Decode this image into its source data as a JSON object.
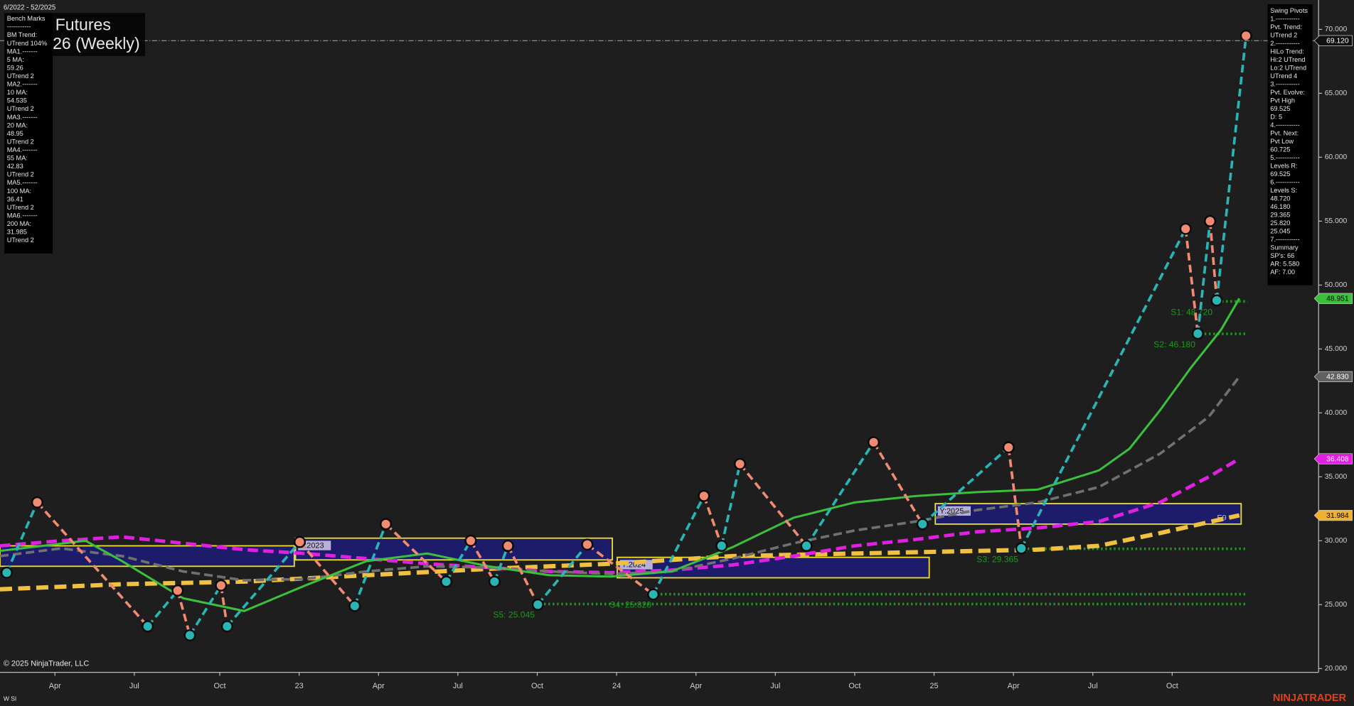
{
  "chart_data": {
    "type": "line",
    "date_range": "6/2022 - 52/2025",
    "title": "Futures",
    "subtitle": "26 (Weekly)",
    "copyright": "© 2025 NinjaTrader, LLC",
    "corner_note": "W SI",
    "brand": "NINJATRADER",
    "background": "#1e1e1e",
    "grid": false,
    "xlim": [
      0,
      215.7
    ],
    "ylim": [
      19.7,
      72.3
    ],
    "xticks": [
      {
        "value": 9,
        "label": "Apr"
      },
      {
        "value": 22,
        "label": "Jul"
      },
      {
        "value": 36,
        "label": "Oct"
      },
      {
        "value": 49,
        "label": "23"
      },
      {
        "value": 62,
        "label": "Apr"
      },
      {
        "value": 75,
        "label": "Jul"
      },
      {
        "value": 88,
        "label": "Oct"
      },
      {
        "value": 101,
        "label": "24"
      },
      {
        "value": 114,
        "label": "Apr"
      },
      {
        "value": 127,
        "label": "Jul"
      },
      {
        "value": 140,
        "label": "Oct"
      },
      {
        "value": 153,
        "label": "25"
      },
      {
        "value": 166,
        "label": "Apr"
      },
      {
        "value": 179,
        "label": "Jul"
      },
      {
        "value": 192,
        "label": "Oct"
      }
    ],
    "yticks": [
      {
        "value": 20,
        "label": "20.000"
      },
      {
        "value": 25,
        "label": "25.000"
      },
      {
        "value": 30,
        "label": "30.000"
      },
      {
        "value": 35,
        "label": "35.000"
      },
      {
        "value": 40,
        "label": "40.000"
      },
      {
        "value": 45,
        "label": "45.000"
      },
      {
        "value": 50,
        "label": "50.000"
      },
      {
        "value": 55,
        "label": "55.000"
      },
      {
        "value": 60,
        "label": "60.000"
      },
      {
        "value": 65,
        "label": "65.000"
      },
      {
        "value": 70,
        "label": "70.000"
      }
    ],
    "series": [
      {
        "color": "#f0c040",
        "dash": "14 7",
        "width": 5,
        "x": [
          0,
          20,
          40,
          60,
          80,
          100,
          120,
          140,
          160,
          170,
          180,
          190,
          203
        ],
        "values": [
          26.2,
          26.6,
          26.8,
          27.3,
          27.8,
          28.2,
          28.8,
          29.0,
          29.2,
          29.3,
          29.6,
          30.6,
          31.984
        ]
      },
      {
        "color": "#e020e0",
        "dash": "12 6",
        "width": 4,
        "x": [
          0,
          10,
          20,
          30,
          40,
          50,
          60,
          70,
          80,
          90,
          100,
          110,
          120,
          130,
          140,
          150,
          160,
          170,
          180,
          190,
          198,
          203
        ],
        "values": [
          29.6,
          30.0,
          30.3,
          29.8,
          29.3,
          29.0,
          28.6,
          28.2,
          27.9,
          27.6,
          27.5,
          27.7,
          28.1,
          28.8,
          29.6,
          30.1,
          30.7,
          31.0,
          31.5,
          33.0,
          35.0,
          36.408
        ]
      },
      {
        "color": "#707070",
        "dash": "10 5",
        "width": 3,
        "x": [
          0,
          10,
          20,
          30,
          40,
          50,
          60,
          70,
          80,
          90,
          100,
          110,
          120,
          130,
          140,
          150,
          160,
          170,
          180,
          190,
          198,
          203
        ],
        "values": [
          28.8,
          29.4,
          28.8,
          27.6,
          26.9,
          27.0,
          27.6,
          28.0,
          27.9,
          27.6,
          27.4,
          27.6,
          28.6,
          29.8,
          30.8,
          31.5,
          32.4,
          33.0,
          34.2,
          36.8,
          39.7,
          42.83
        ]
      },
      {
        "color": "#3cc03c",
        "dash": "",
        "width": 2.5,
        "x": [
          0,
          14,
          20,
          30,
          40,
          50,
          60,
          70,
          80,
          90,
          100,
          110,
          120,
          130,
          140,
          150,
          160,
          170,
          180,
          185,
          190,
          195,
          200,
          203
        ],
        "values": [
          29.2,
          30.0,
          28.4,
          25.5,
          24.5,
          26.5,
          28.4,
          29.0,
          28.0,
          27.3,
          27.2,
          27.6,
          29.5,
          31.8,
          33.0,
          33.5,
          33.8,
          34.0,
          35.5,
          37.2,
          40.2,
          43.5,
          46.5,
          48.951
        ]
      }
    ],
    "yearly_ranges": [
      {
        "label": "Y:2023",
        "x": [
          48.4,
          100.3
        ],
        "range": [
          28.5,
          30.2
        ]
      },
      {
        "label": "Y:2024",
        "x": [
          101.1,
          152.2
        ],
        "range": [
          27.1,
          28.7
        ]
      },
      {
        "label": "Y:2025",
        "x": [
          153.2,
          203.3
        ],
        "range": [
          31.3,
          32.9
        ]
      }
    ],
    "prior_range": {
      "x": [
        0,
        48.2
      ],
      "range": [
        28.0,
        29.6
      ]
    },
    "range_note": "E9",
    "levels": [
      {
        "label": "S1: 48.720",
        "value": 48.72,
        "start": 199.4
      },
      {
        "label": "S2: 46.180",
        "value": 46.18,
        "start": 196.6
      },
      {
        "label": "S3: 29.365",
        "value": 29.365,
        "start": 167.6
      },
      {
        "label": "S4: 25.820",
        "value": 25.82,
        "start": 107.5
      },
      {
        "label": "S5: 25.045",
        "value": 25.045,
        "start": 88.4
      }
    ],
    "level_color": "#1a9a1a",
    "swing": {
      "up_color": "#2ab4b4",
      "down_color": "#f08a70",
      "x": [
        1.1,
        6.1,
        24.2,
        29.1,
        31.1,
        36.2,
        37.2,
        49.1,
        58.1,
        63.2,
        73.1,
        77.1,
        81,
        83.2,
        88.1,
        96.2,
        107,
        115.3,
        118.2,
        121.2,
        132.1,
        143.1,
        151.1,
        165.2,
        167.3,
        194.2,
        196.2,
        198.2,
        199.3,
        204.1
      ],
      "values": [
        27.5,
        33.0,
        23.3,
        26.1,
        22.6,
        26.5,
        23.3,
        29.9,
        24.9,
        31.3,
        26.8,
        30.0,
        26.8,
        29.6,
        25.0,
        29.7,
        25.8,
        33.5,
        29.6,
        36.0,
        29.6,
        37.7,
        31.3,
        37.3,
        29.4,
        54.4,
        46.2,
        55.0,
        48.8,
        69.5
      ]
    },
    "price_tags": [
      {
        "value": 69.12,
        "label": "69.120",
        "color": "#111111",
        "text_color": "#ffffff"
      },
      {
        "value": 48.951,
        "label": "48.951",
        "color": "#3cc03c",
        "text_color": "#000000"
      },
      {
        "value": 42.83,
        "label": "42.830",
        "color": "#606060",
        "text_color": "#ffffff"
      },
      {
        "value": 36.408,
        "label": "36.408",
        "color": "#e020e0",
        "text_color": "#ffffff"
      },
      {
        "value": 31.984,
        "label": "31.984",
        "color": "#f0b030",
        "text_color": "#000000"
      }
    ],
    "benchmarks": [
      "Bench Marks",
      "-----------",
      "BM Trend:",
      "UTrend 104%",
      "MA1.-------",
      "5 MA:",
      "59.26",
      "UTrend 2",
      "MA2.-------",
      "10 MA:",
      "54.535",
      "UTrend 2",
      "MA3.-------",
      "20 MA:",
      "48.95",
      "UTrend 2",
      "MA4.-------",
      "55 MA:",
      "42.83",
      "UTrend 2",
      "MA5.-------",
      "100 MA:",
      "36.41",
      "UTrend 2",
      "MA6.-------",
      "200 MA:",
      "31.985",
      "UTrend 2"
    ],
    "swing_pivots": [
      "Swing Pivots",
      "1.-----------",
      "Pvt. Trend:",
      "UTrend 2",
      "2.-----------",
      "HiLo Trend:",
      "Hi:2 UTrend",
      "Lo:2 UTrend",
      "UTrend 4",
      "3.-----------",
      "Pvt. Evolve:",
      "Pvt High",
      "69.525",
      "D: 5",
      "4.-----------",
      "Pvt. Next:",
      "Pvt Low",
      "60.725",
      "5.-----------",
      "Levels R:",
      "69.525",
      "6.-----------",
      "Levels S:",
      "48.720",
      "46.180",
      "29.365",
      "25.820",
      "25.045",
      "7.-----------",
      "Summary",
      "SP's: 66",
      "AR: 5.580",
      "AF: 7.00"
    ]
  }
}
